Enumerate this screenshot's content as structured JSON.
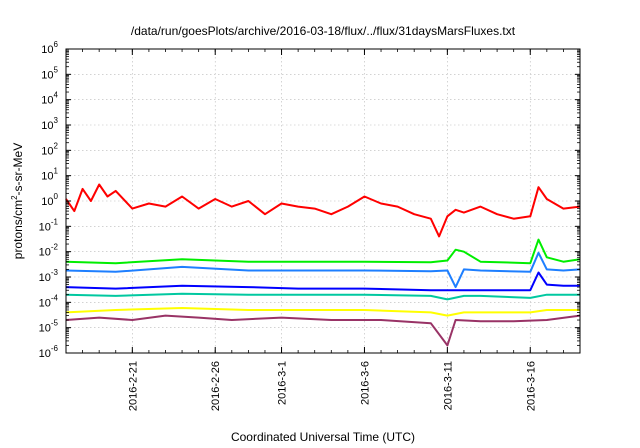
{
  "chart_data": {
    "type": "line",
    "title": "/data/run/goesPlots/archive/2016-03-18/flux/../flux/31daysMarsFluxes.txt",
    "xlabel": "Coordinated Universal Time (UTC)",
    "ylabel": "protons/cm2-s-sr-MeV",
    "ylabel_parts": {
      "pre": "protons/cm",
      "sup": "2",
      "post": "-s-sr-MeV"
    },
    "y_scale": "log",
    "ylim": [
      1e-06,
      1000000
    ],
    "y_ticks": [
      {
        "base": "10",
        "exp": "-6",
        "value": 1e-06
      },
      {
        "base": "10",
        "exp": "-5",
        "value": 1e-05
      },
      {
        "base": "10",
        "exp": "-4",
        "value": 0.0001
      },
      {
        "base": "10",
        "exp": "-3",
        "value": 0.001
      },
      {
        "base": "10",
        "exp": "-2",
        "value": 0.01
      },
      {
        "base": "10",
        "exp": "-1",
        "value": 0.1
      },
      {
        "base": "10",
        "exp": "0",
        "value": 1
      },
      {
        "base": "10",
        "exp": "1",
        "value": 10
      },
      {
        "base": "10",
        "exp": "2",
        "value": 100
      },
      {
        "base": "10",
        "exp": "3",
        "value": 1000
      },
      {
        "base": "10",
        "exp": "4",
        "value": 10000
      },
      {
        "base": "10",
        "exp": "5",
        "value": 100000
      },
      {
        "base": "10",
        "exp": "6",
        "value": 1000000
      }
    ],
    "xlim": [
      "2016-02-17",
      "2016-03-19"
    ],
    "x_ticks": [
      "2016-2-21",
      "2016-2-26",
      "2016-3-1",
      "2016-3-6",
      "2016-3-11",
      "2016-3-16"
    ],
    "grid": true,
    "series": [
      {
        "color": "#ff0000",
        "x": [
          "2016-02-17",
          "2016-02-17.5",
          "2016-02-18",
          "2016-02-18.5",
          "2016-02-19",
          "2016-02-19.5",
          "2016-02-20",
          "2016-02-21",
          "2016-02-22",
          "2016-02-23",
          "2016-02-24",
          "2016-02-25",
          "2016-02-26",
          "2016-02-27",
          "2016-02-28",
          "2016-02-29",
          "2016-03-01",
          "2016-03-02",
          "2016-03-03",
          "2016-03-04",
          "2016-03-05",
          "2016-03-06",
          "2016-03-07",
          "2016-03-08",
          "2016-03-09",
          "2016-03-10",
          "2016-03-10.5",
          "2016-03-11",
          "2016-03-11.5",
          "2016-03-12",
          "2016-03-13",
          "2016-03-14",
          "2016-03-15",
          "2016-03-16",
          "2016-03-16.5",
          "2016-03-17",
          "2016-03-18",
          "2016-03-19"
        ],
        "values": [
          1.2,
          0.4,
          3.0,
          1.0,
          4.5,
          1.5,
          2.5,
          0.5,
          0.8,
          0.6,
          1.5,
          0.5,
          1.2,
          0.6,
          1.0,
          0.3,
          0.8,
          0.6,
          0.5,
          0.3,
          0.6,
          1.5,
          0.8,
          0.6,
          0.3,
          0.2,
          0.04,
          0.25,
          0.45,
          0.35,
          0.6,
          0.3,
          0.2,
          0.25,
          3.5,
          1.2,
          0.5,
          0.6
        ]
      },
      {
        "color": "#00ee00",
        "x": [
          "2016-02-17",
          "2016-02-20",
          "2016-02-24",
          "2016-02-28",
          "2016-03-02",
          "2016-03-06",
          "2016-03-10",
          "2016-03-11",
          "2016-03-11.5",
          "2016-03-12",
          "2016-03-13",
          "2016-03-16",
          "2016-03-16.5",
          "2016-03-17",
          "2016-03-18",
          "2016-03-19"
        ],
        "values": [
          0.004,
          0.0035,
          0.005,
          0.004,
          0.004,
          0.004,
          0.0038,
          0.0045,
          0.012,
          0.01,
          0.004,
          0.0035,
          0.03,
          0.006,
          0.004,
          0.005
        ]
      },
      {
        "color": "#1e7fff",
        "x": [
          "2016-02-17",
          "2016-02-20",
          "2016-02-24",
          "2016-02-28",
          "2016-03-02",
          "2016-03-06",
          "2016-03-10",
          "2016-03-11",
          "2016-03-11.5",
          "2016-03-12",
          "2016-03-13",
          "2016-03-16",
          "2016-03-16.5",
          "2016-03-17",
          "2016-03-18",
          "2016-03-19"
        ],
        "values": [
          0.0018,
          0.0016,
          0.0025,
          0.0018,
          0.0018,
          0.0018,
          0.0017,
          0.0018,
          0.0004,
          0.002,
          0.0018,
          0.0016,
          0.009,
          0.002,
          0.0018,
          0.002
        ]
      },
      {
        "color": "#0000ff",
        "x": [
          "2016-02-17",
          "2016-02-20",
          "2016-02-24",
          "2016-02-28",
          "2016-03-02",
          "2016-03-06",
          "2016-03-10",
          "2016-03-11",
          "2016-03-12",
          "2016-03-13",
          "2016-03-16",
          "2016-03-16.5",
          "2016-03-17",
          "2016-03-18",
          "2016-03-19"
        ],
        "values": [
          0.0004,
          0.00035,
          0.00045,
          0.0004,
          0.00035,
          0.00035,
          0.0003,
          0.0003,
          0.0003,
          0.0003,
          0.0003,
          0.0015,
          0.0005,
          0.00045,
          0.00045
        ]
      },
      {
        "color": "#00c8a0",
        "x": [
          "2016-02-17",
          "2016-02-20",
          "2016-02-24",
          "2016-02-28",
          "2016-03-02",
          "2016-03-06",
          "2016-03-10",
          "2016-03-11",
          "2016-03-12",
          "2016-03-13",
          "2016-03-16",
          "2016-03-17",
          "2016-03-18",
          "2016-03-19"
        ],
        "values": [
          0.0002,
          0.00018,
          0.00022,
          0.0002,
          0.0002,
          0.0002,
          0.00018,
          0.00013,
          0.00018,
          0.00018,
          0.00015,
          0.0002,
          0.0002,
          0.0002
        ]
      },
      {
        "color": "#ffff00",
        "x": [
          "2016-02-17",
          "2016-02-20",
          "2016-02-24",
          "2016-02-28",
          "2016-03-02",
          "2016-03-06",
          "2016-03-10",
          "2016-03-11",
          "2016-03-12",
          "2016-03-13",
          "2016-03-16",
          "2016-03-17",
          "2016-03-18",
          "2016-03-19"
        ],
        "values": [
          4e-05,
          5e-05,
          6e-05,
          5e-05,
          5e-05,
          5e-05,
          4e-05,
          3e-05,
          4e-05,
          4e-05,
          4e-05,
          5e-05,
          5e-05,
          5e-05
        ]
      },
      {
        "color": "#993366",
        "x": [
          "2016-02-17",
          "2016-02-19",
          "2016-02-21",
          "2016-02-23",
          "2016-02-25",
          "2016-02-27",
          "2016-03-01",
          "2016-03-04",
          "2016-03-07",
          "2016-03-10",
          "2016-03-11",
          "2016-03-11.5",
          "2016-03-13",
          "2016-03-15",
          "2016-03-17",
          "2016-03-19"
        ],
        "values": [
          2e-05,
          2.5e-05,
          2e-05,
          3e-05,
          2.5e-05,
          2e-05,
          2.5e-05,
          2e-05,
          2e-05,
          1.5e-05,
          2e-06,
          2e-05,
          1.8e-05,
          1.8e-05,
          2e-05,
          3e-05
        ]
      }
    ]
  }
}
